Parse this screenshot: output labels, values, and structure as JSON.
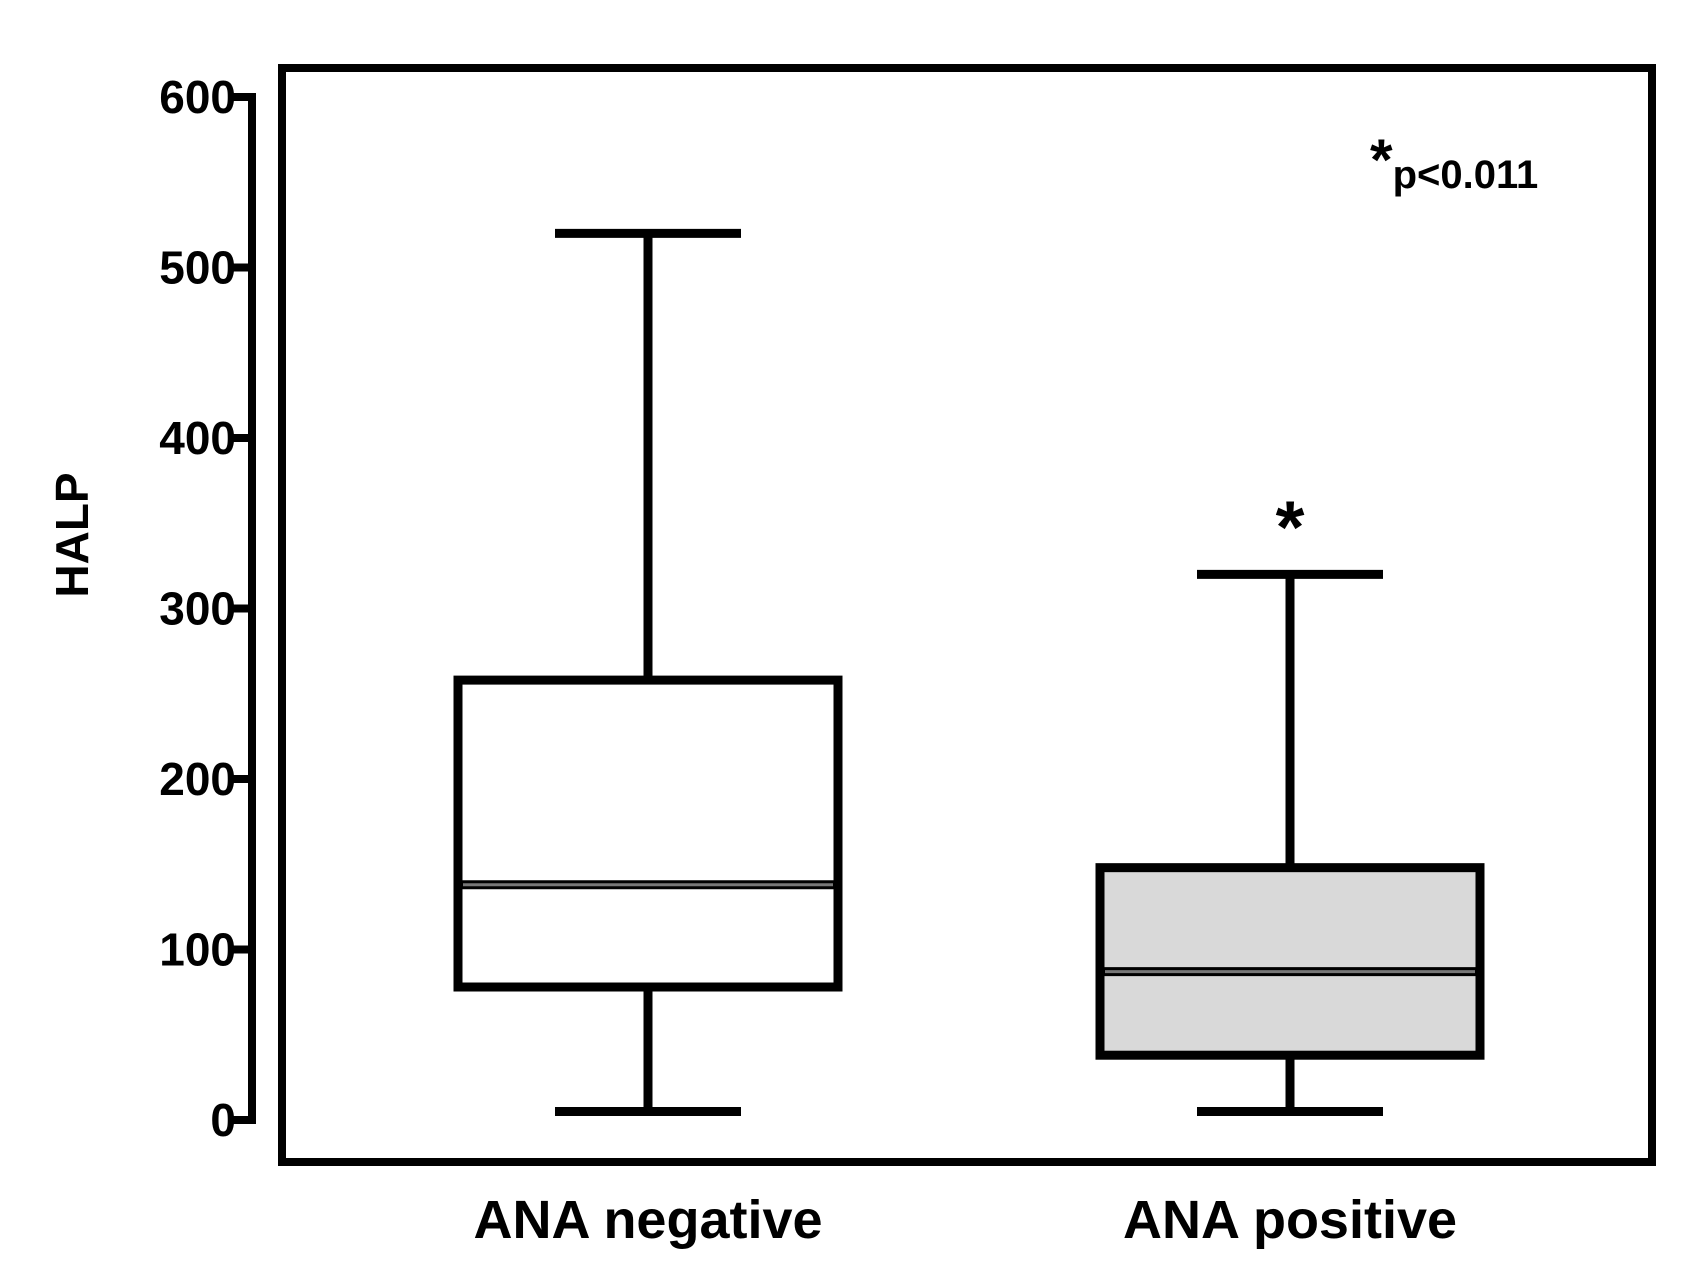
{
  "chart_data": {
    "type": "boxplot",
    "title": "",
    "xlabel": "",
    "ylabel": "HALP",
    "ylim": [
      0,
      600
    ],
    "yticks": [
      0,
      100,
      200,
      300,
      400,
      500,
      600
    ],
    "ytick_labels": [
      "0",
      "100",
      "200",
      "300",
      "400",
      "500",
      "600"
    ],
    "categories": [
      "ANA negative",
      "ANA positive"
    ],
    "boxes": [
      {
        "name": "ANA negative",
        "whisker_low": 5,
        "q1": 78,
        "median": 138,
        "q3": 258,
        "whisker_high": 520,
        "fill": "#ffffff"
      },
      {
        "name": "ANA positive",
        "whisker_low": 5,
        "q1": 38,
        "median": 87,
        "q3": 148,
        "whisker_high": 320,
        "fill": "#d9d9d9"
      }
    ],
    "significance_marker": {
      "category": "ANA positive",
      "symbol": "*"
    },
    "annotation": {
      "symbol": "*",
      "text": "p<0.011"
    }
  }
}
